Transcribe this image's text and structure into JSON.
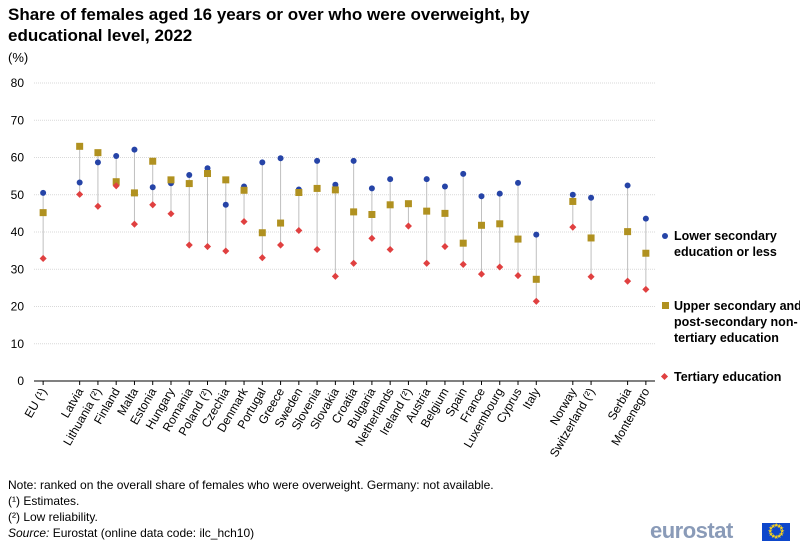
{
  "chart_data": {
    "type": "scatter",
    "title": "Share of females aged 16 years or over who were overweight, by educational level, 2022",
    "unit": "(%)",
    "ylim": [
      0,
      80
    ],
    "yticks": [
      0,
      10,
      20,
      30,
      40,
      50,
      60,
      70,
      80
    ],
    "categories": [
      {
        "label": "EU (¹)",
        "group": 0
      },
      {
        "label": "Latvia",
        "group": 1
      },
      {
        "label": "Lithuania (²)",
        "group": 1
      },
      {
        "label": "Finland",
        "group": 1
      },
      {
        "label": "Malta",
        "group": 1
      },
      {
        "label": "Estonia",
        "group": 1
      },
      {
        "label": "Hungary",
        "group": 1
      },
      {
        "label": "Romania",
        "group": 1
      },
      {
        "label": "Poland (²)",
        "group": 1
      },
      {
        "label": "Czechia",
        "group": 1
      },
      {
        "label": "Denmark",
        "group": 1
      },
      {
        "label": "Portugal",
        "group": 1
      },
      {
        "label": "Greece",
        "group": 1
      },
      {
        "label": "Sweden",
        "group": 1
      },
      {
        "label": "Slovenia",
        "group": 1
      },
      {
        "label": "Slovakia",
        "group": 1
      },
      {
        "label": "Croatia",
        "group": 1
      },
      {
        "label": "Bulgaria",
        "group": 1
      },
      {
        "label": "Netherlands",
        "group": 1
      },
      {
        "label": "Ireland (²)",
        "group": 1
      },
      {
        "label": "Austria",
        "group": 1
      },
      {
        "label": "Belgium",
        "group": 1
      },
      {
        "label": "Spain",
        "group": 1
      },
      {
        "label": "France",
        "group": 1
      },
      {
        "label": "Luxembourg",
        "group": 1
      },
      {
        "label": "Cyprus",
        "group": 1
      },
      {
        "label": "Italy",
        "group": 1
      },
      {
        "label": "Norway",
        "group": 2
      },
      {
        "label": "Switzerland (²)",
        "group": 2
      },
      {
        "label": "Serbia",
        "group": 3
      },
      {
        "label": "Montenegro",
        "group": 3
      }
    ],
    "series": [
      {
        "name": "Lower secondary education or less",
        "marker": "circle",
        "color": "#2644a7",
        "values": [
          50.5,
          53.3,
          58.7,
          60.4,
          62.1,
          52.0,
          53.1,
          55.3,
          57.1,
          47.3,
          52.2,
          58.7,
          59.8,
          51.4,
          59.1,
          52.7,
          59.1,
          51.7,
          54.2,
          null,
          54.2,
          52.2,
          55.6,
          49.6,
          50.3,
          53.2,
          39.3,
          50.0,
          49.2,
          52.5,
          43.6
        ]
      },
      {
        "name": "Upper secondary and post-secondary non-tertiary education",
        "marker": "square",
        "color": "#b09120",
        "values": [
          45.2,
          63.0,
          61.3,
          53.5,
          50.5,
          59.0,
          54.0,
          53.0,
          55.7,
          54.0,
          51.2,
          39.8,
          42.4,
          50.6,
          51.7,
          51.3,
          45.4,
          44.7,
          47.3,
          47.6,
          45.6,
          45.0,
          37.0,
          41.8,
          42.2,
          38.1,
          27.3,
          48.2,
          38.4,
          40.1,
          34.3
        ]
      },
      {
        "name": "Tertiary education",
        "marker": "diamond",
        "color": "#e04040",
        "values": [
          32.9,
          50.1,
          46.9,
          52.4,
          42.1,
          47.3,
          44.9,
          36.5,
          36.1,
          34.9,
          42.8,
          33.1,
          36.5,
          40.4,
          35.3,
          28.1,
          31.6,
          38.3,
          35.3,
          41.6,
          31.6,
          36.1,
          31.3,
          28.7,
          30.6,
          28.3,
          21.4,
          41.3,
          28.0,
          26.8,
          24.6
        ]
      }
    ]
  },
  "legend": [
    {
      "label": "Lower secondary education or less"
    },
    {
      "label": "Upper secondary and post-secondary non-tertiary education"
    },
    {
      "label": "Tertiary education"
    }
  ],
  "notes": {
    "note": "Note: ranked on the overall share of females who were overweight. Germany: not available.",
    "estimates": "(¹) Estimates.",
    "low_reliability": "(²) Low reliability.",
    "source_label": "Source:",
    "source_text": " Eurostat (online data code: ilc_hch10)"
  },
  "logo": {
    "text": "eurostat"
  }
}
